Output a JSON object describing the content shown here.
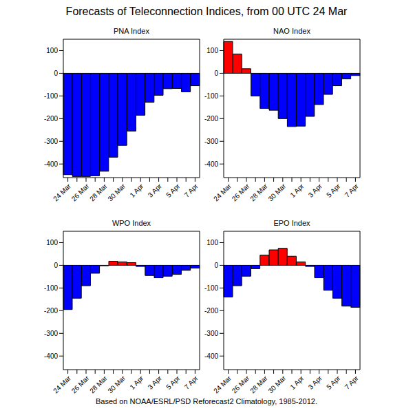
{
  "title": "Forecasts of Teleconnection Indices, from 00 UTC 24 Mar",
  "caption": "Based on NOAA/ESRL/PSD Reforecast2 Climatology, 1985-2012.",
  "chart_data": [
    {
      "type": "bar",
      "title": "PNA Index",
      "categories": [
        "24 Mar",
        null,
        "26 Mar",
        null,
        "28 Mar",
        null,
        "30 Mar",
        null,
        "1 Apr",
        null,
        "3 Apr",
        null,
        "5 Apr",
        null,
        "7 Apr"
      ],
      "values": [
        -447,
        -455,
        -455,
        -452,
        -432,
        -370,
        -318,
        -255,
        -185,
        -128,
        -97,
        -68,
        -67,
        -82,
        -55
      ],
      "colors": [
        "#0000ff",
        "#0000ff",
        "#0000ff",
        "#0000ff",
        "#0000ff",
        "#0000ff",
        "#0000ff",
        "#0000ff",
        "#0000ff",
        "#0000ff",
        "#0000ff",
        "#0000ff",
        "#0000ff",
        "#0000ff",
        "#0000ff"
      ],
      "ylim": [
        -460,
        150
      ],
      "yticks": [
        -400,
        -300,
        -200,
        -100,
        0,
        100
      ]
    },
    {
      "type": "bar",
      "title": "NAO Index",
      "categories": [
        "24 Mar",
        null,
        "26 Mar",
        null,
        "28 Mar",
        null,
        "30 Mar",
        null,
        "1 Apr",
        null,
        "3 Apr",
        null,
        "5 Apr",
        null,
        "7 Apr"
      ],
      "values": [
        140,
        85,
        20,
        -100,
        -155,
        -163,
        -200,
        -235,
        -233,
        -190,
        -138,
        -93,
        -55,
        -25,
        -10
      ],
      "colors": [
        "#ff0000",
        "#ff0000",
        "#ff0000",
        "#0000ff",
        "#0000ff",
        "#0000ff",
        "#0000ff",
        "#0000ff",
        "#0000ff",
        "#0000ff",
        "#0000ff",
        "#0000ff",
        "#0000ff",
        "#0000ff",
        "#0000ff"
      ],
      "ylim": [
        -460,
        150
      ],
      "yticks": [
        -400,
        -300,
        -200,
        -100,
        0,
        100
      ]
    },
    {
      "type": "bar",
      "title": "WPO Index",
      "categories": [
        "24 Mar",
        null,
        "26 Mar",
        null,
        "28 Mar",
        null,
        "30 Mar",
        null,
        "1 Apr",
        null,
        "3 Apr",
        null,
        "5 Apr",
        null,
        "7 Apr"
      ],
      "values": [
        -195,
        -145,
        -90,
        -35,
        -2,
        18,
        15,
        12,
        -5,
        -45,
        -55,
        -48,
        -40,
        -22,
        -12
      ],
      "colors": [
        "#0000ff",
        "#0000ff",
        "#0000ff",
        "#0000ff",
        "#0000ff",
        "#ff0000",
        "#ff0000",
        "#ff0000",
        "#0000ff",
        "#0000ff",
        "#0000ff",
        "#0000ff",
        "#0000ff",
        "#0000ff",
        "#0000ff"
      ],
      "ylim": [
        -460,
        150
      ],
      "yticks": [
        -400,
        -300,
        -200,
        -100,
        0,
        100
      ]
    },
    {
      "type": "bar",
      "title": "EPO Index",
      "categories": [
        "24 Mar",
        null,
        "26 Mar",
        null,
        "28 Mar",
        null,
        "30 Mar",
        null,
        "1 Apr",
        null,
        "3 Apr",
        null,
        "5 Apr",
        null,
        "7 Apr"
      ],
      "values": [
        -140,
        -90,
        -48,
        -15,
        45,
        68,
        75,
        40,
        15,
        -5,
        -55,
        -110,
        -145,
        -180,
        -185
      ],
      "colors": [
        "#0000ff",
        "#0000ff",
        "#0000ff",
        "#0000ff",
        "#ff0000",
        "#ff0000",
        "#ff0000",
        "#ff0000",
        "#ff0000",
        "#0000ff",
        "#0000ff",
        "#0000ff",
        "#0000ff",
        "#0000ff",
        "#0000ff"
      ],
      "ylim": [
        -460,
        150
      ],
      "yticks": [
        -400,
        -300,
        -200,
        -100,
        0,
        100
      ]
    }
  ]
}
